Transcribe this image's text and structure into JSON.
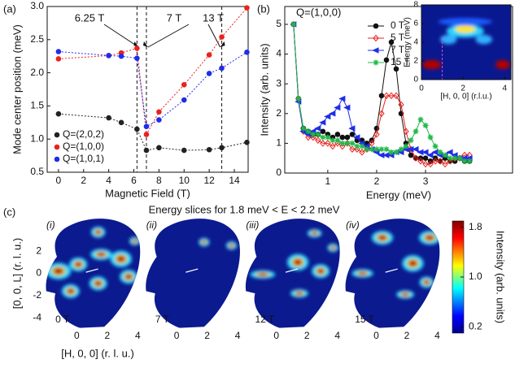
{
  "chart_data": [
    {
      "type": "scatter",
      "label": "(a)",
      "xlabel": "Magnetic Field (T)",
      "ylabel": "Mode center position (meV)",
      "xlim": [
        -0.9,
        15.1
      ],
      "ylim": [
        0.5,
        3.0
      ],
      "xticks": [
        0,
        2,
        4,
        6,
        8,
        10,
        12,
        14
      ],
      "yticks": [
        0.5,
        {
          "value": 1,
          "label": "1.0"
        },
        1.5,
        {
          "value": 2,
          "label": "2.0"
        },
        2.5,
        {
          "value": 3,
          "label": "3.0"
        }
      ],
      "vlines": [
        6.25,
        7,
        13
      ],
      "annotations": [
        "6.25 T",
        "7 T",
        "13 T"
      ],
      "legend": "lower left",
      "x": [
        0,
        4,
        5,
        6.25,
        7,
        8,
        10,
        12,
        13,
        15
      ],
      "series": [
        {
          "name": "Q=(2,0,2)",
          "color": "#222222",
          "values": [
            1.38,
            1.32,
            1.25,
            1.15,
            0.83,
            0.87,
            0.83,
            0.84,
            0.87,
            0.95
          ]
        },
        {
          "name": "Q=(1,0,0)",
          "color": "#e8231f",
          "values": [
            2.21,
            2.26,
            2.3,
            2.37,
            1.07,
            1.41,
            1.82,
            2.27,
            2.54,
            2.98
          ]
        },
        {
          "name": "Q=(1,0,1)",
          "color": "#1f2de8",
          "values": [
            2.32,
            2.26,
            2.25,
            2.22,
            1.19,
            1.29,
            1.59,
            1.99,
            2.07,
            2.31
          ]
        }
      ]
    },
    {
      "type": "line",
      "label": "(b)",
      "title": "Q=(1,0,0)",
      "xlabel": "Energy (meV)",
      "ylabel": "Intensity (arb. units)",
      "xlim": [
        0.12,
        4.78
      ],
      "ylim": [
        0,
        5.6
      ],
      "xticks": [
        1,
        2,
        3
      ],
      "yticks": [
        0,
        1,
        2,
        3,
        4,
        5
      ],
      "legend": "upper center",
      "x": [
        0.3,
        0.4,
        0.5,
        0.6,
        0.7,
        0.8,
        0.9,
        1.0,
        1.1,
        1.2,
        1.3,
        1.4,
        1.5,
        1.6,
        1.7,
        1.8,
        1.9,
        2.0,
        2.1,
        2.2,
        2.3,
        2.4,
        2.5,
        2.6,
        2.7,
        2.8,
        2.9,
        3.0,
        3.1,
        3.2,
        3.3,
        3.4,
        3.5,
        3.6,
        3.7,
        3.8,
        3.9
      ],
      "series": [
        {
          "name": "0 T",
          "color": "#111111",
          "marker": "circle",
          "values": [
            5.0,
            2.5,
            1.5,
            1.4,
            1.3,
            1.3,
            1.4,
            1.3,
            1.2,
            1.3,
            1.2,
            1.2,
            1.3,
            1.1,
            1.1,
            1.0,
            1.1,
            1.5,
            2.6,
            3.8,
            4.4,
            3.5,
            2.0,
            1.0,
            0.6,
            0.5,
            0.5,
            0.5,
            0.4,
            0.5,
            0.4,
            0.5,
            0.4,
            0.4,
            0.5,
            0.4,
            0.4
          ]
        },
        {
          "name": "5 T",
          "color": "#e8231f",
          "marker": "diamond",
          "values": [
            5.0,
            2.5,
            1.4,
            1.2,
            1.2,
            1.1,
            1.0,
            1.0,
            0.9,
            1.0,
            0.9,
            1.0,
            0.8,
            0.8,
            0.7,
            0.8,
            1.0,
            1.3,
            2.0,
            2.6,
            2.6,
            2.6,
            2.3,
            1.4,
            0.8,
            0.5,
            0.4,
            0.3,
            0.3,
            0.4,
            0.4,
            0.3,
            0.4,
            0.5,
            0.5,
            0.6,
            0.6
          ]
        },
        {
          "name": "7 T",
          "color": "#1f2de8",
          "marker": "triangle",
          "values": [
            5.0,
            2.4,
            1.4,
            1.3,
            1.4,
            1.5,
            1.7,
            1.9,
            2.0,
            2.2,
            2.5,
            2.2,
            1.5,
            1.2,
            1.0,
            0.9,
            0.8,
            0.7,
            0.6,
            0.6,
            0.6,
            0.7,
            0.7,
            0.8,
            0.8,
            0.8,
            0.7,
            0.7,
            0.6,
            0.7,
            0.6,
            0.6,
            0.7,
            0.6,
            0.5,
            0.5,
            0.5
          ]
        },
        {
          "name": "15 T",
          "color": "#22b84a",
          "marker": "star",
          "values": [
            5.0,
            2.5,
            1.5,
            1.4,
            1.3,
            1.3,
            1.2,
            1.2,
            1.1,
            1.1,
            1.0,
            1.0,
            1.0,
            0.9,
            0.9,
            0.8,
            0.8,
            0.8,
            0.8,
            0.8,
            0.7,
            0.7,
            0.8,
            0.9,
            1.1,
            1.4,
            1.8,
            1.6,
            1.2,
            0.9,
            0.7,
            0.6,
            0.5,
            0.5,
            0.5,
            0.4,
            0.4
          ]
        }
      ]
    },
    {
      "type": "heatmap",
      "xlabel": "[H, 0, 0] (r.l.u.)",
      "ylabel": "Energy (meV)",
      "xlim": [
        0,
        4.3
      ],
      "ylim": [
        0,
        8
      ],
      "xticks": [
        0,
        2,
        4
      ],
      "yticks": [
        0,
        2,
        4,
        6,
        8
      ],
      "colormap": "jet"
    },
    {
      "type": "heatmap",
      "label": "(c)",
      "title": "Energy slices for 1.8 meV < E < 2.2 meV",
      "xlabel": "[H, 0, 0] (r. l. u.)",
      "ylabel": "[0, 0, L] (r. l. u.)",
      "xlim": [
        -2.1,
        4.3
      ],
      "ylim": [
        -5,
        5
      ],
      "xticks": [
        0,
        2,
        4
      ],
      "yticks": [
        -4,
        -2,
        0,
        2
      ],
      "colormap": "jet",
      "panels": [
        {
          "label": "(i)",
          "field": "0 T"
        },
        {
          "label": "(ii)",
          "field": "7 T"
        },
        {
          "label": "(iii)",
          "field": "12 T"
        },
        {
          "label": "(iv)",
          "field": "15 T"
        }
      ],
      "colorbar": {
        "label": "Intensity (arb. units)",
        "lim": [
          0.1,
          1.9
        ],
        "ticks": [
          0.2,
          {
            "value": 1,
            "label": "1.0"
          },
          1.8
        ]
      }
    }
  ]
}
